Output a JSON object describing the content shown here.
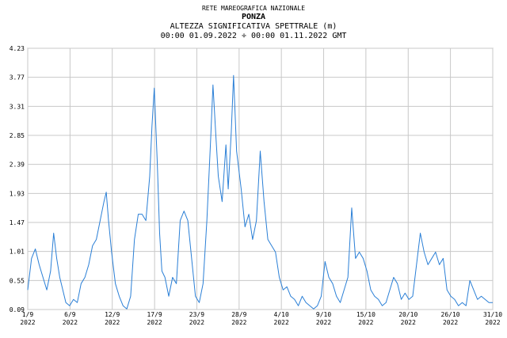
{
  "chart_data": {
    "type": "line",
    "title": "RETE MAREOGRAFICA NAZIONALE",
    "subtitle": "PONZA",
    "y_label": "ALTEZZA SIGNIFICATIVA SPETTRALE (m)",
    "period": "00:00 01.09.2022 ÷ 00:00 01.11.2022 GMT",
    "xlim": [
      0,
      61
    ],
    "xticks": [
      {
        "value": 0,
        "label": "1/9 2022"
      },
      {
        "value": 5.55,
        "label": "6/9 2022"
      },
      {
        "value": 11.09,
        "label": "12/9 2022"
      },
      {
        "value": 16.64,
        "label": "17/9 2022"
      },
      {
        "value": 22.18,
        "label": "23/9 2022"
      },
      {
        "value": 27.73,
        "label": "28/9 2022"
      },
      {
        "value": 33.27,
        "label": "4/10 2022"
      },
      {
        "value": 38.82,
        "label": "9/10 2022"
      },
      {
        "value": 44.36,
        "label": "15/10 2022"
      },
      {
        "value": 49.91,
        "label": "20/10 2022"
      },
      {
        "value": 55.45,
        "label": "26/10 2022"
      },
      {
        "value": 61,
        "label": "31/10 2022"
      }
    ],
    "ylim": [
      0.09,
      4.23
    ],
    "yticks": [
      0.09,
      0.55,
      1.01,
      1.47,
      1.93,
      2.39,
      2.85,
      3.31,
      3.77,
      4.23
    ],
    "grid": true,
    "color": "#2a7fd6",
    "x": [
      0,
      0.5,
      1,
      1.5,
      2,
      2.5,
      3,
      3.4,
      3.8,
      4.2,
      4.6,
      5,
      5.5,
      6,
      6.5,
      7,
      7.5,
      8,
      8.5,
      9,
      9.5,
      10,
      10.3,
      10.6,
      11,
      11.5,
      12,
      12.5,
      13,
      13.5,
      14,
      14.5,
      15,
      15.5,
      16,
      16.3,
      16.6,
      17,
      17.3,
      17.6,
      18,
      18.5,
      19,
      19.5,
      20,
      20.5,
      21,
      21.5,
      22,
      22.5,
      23,
      23.5,
      24,
      24.3,
      24.7,
      25,
      25.5,
      26,
      26.3,
      26.7,
      27,
      27.4,
      28,
      28.5,
      29,
      29.5,
      30,
      30.5,
      31,
      31.5,
      32,
      32.5,
      33,
      33.5,
      34,
      34.5,
      35,
      35.5,
      36,
      36.5,
      37,
      37.5,
      38,
      38.5,
      39,
      39.5,
      40,
      40.5,
      41,
      41.5,
      42,
      42.5,
      43,
      43.5,
      44,
      44.5,
      45,
      45.5,
      46,
      46.5,
      47,
      47.5,
      48,
      48.5,
      49,
      49.5,
      50,
      50.5,
      51,
      51.5,
      52,
      52.5,
      53,
      53.5,
      54,
      54.5,
      55,
      55.5,
      56,
      56.5,
      57,
      57.5,
      58,
      58.5,
      59,
      59.5,
      60,
      60.5,
      61
    ],
    "values": [
      0.4,
      0.9,
      1.05,
      0.8,
      0.6,
      0.4,
      0.7,
      1.3,
      0.9,
      0.6,
      0.4,
      0.2,
      0.15,
      0.25,
      0.2,
      0.5,
      0.6,
      0.8,
      1.1,
      1.2,
      1.5,
      1.8,
      1.95,
      1.5,
      1.0,
      0.5,
      0.3,
      0.15,
      0.1,
      0.3,
      1.2,
      1.6,
      1.6,
      1.5,
      2.2,
      3.0,
      3.6,
      2.4,
      1.3,
      0.7,
      0.6,
      0.3,
      0.6,
      0.5,
      1.5,
      1.65,
      1.5,
      0.9,
      0.3,
      0.2,
      0.5,
      1.5,
      2.8,
      3.65,
      2.8,
      2.2,
      1.8,
      2.7,
      2.0,
      2.9,
      3.8,
      2.6,
      2.0,
      1.4,
      1.6,
      1.2,
      1.5,
      2.6,
      1.8,
      1.2,
      1.1,
      1.0,
      0.6,
      0.4,
      0.45,
      0.3,
      0.25,
      0.15,
      0.3,
      0.2,
      0.15,
      0.1,
      0.15,
      0.3,
      0.85,
      0.6,
      0.5,
      0.3,
      0.2,
      0.4,
      0.6,
      1.7,
      0.9,
      1.0,
      0.9,
      0.7,
      0.4,
      0.3,
      0.25,
      0.15,
      0.2,
      0.4,
      0.6,
      0.5,
      0.25,
      0.35,
      0.25,
      0.3,
      0.8,
      1.3,
      1.0,
      0.8,
      0.9,
      1.0,
      0.8,
      0.9,
      0.4,
      0.3,
      0.25,
      0.15,
      0.2,
      0.15,
      0.55,
      0.4,
      0.25,
      0.3,
      0.25,
      0.2,
      0.2
    ]
  }
}
